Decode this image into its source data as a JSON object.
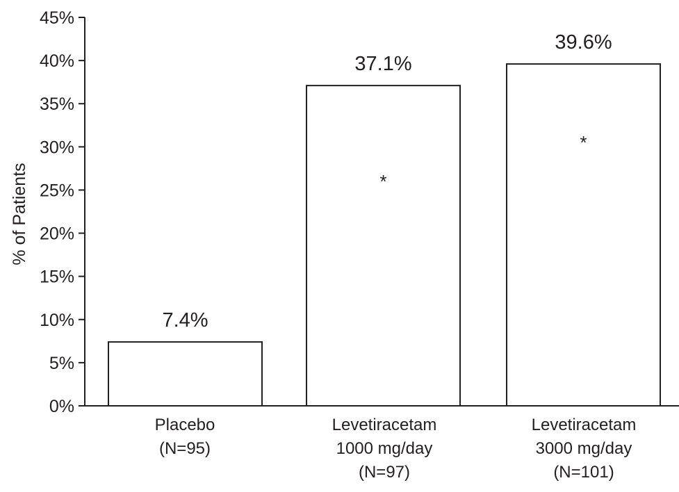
{
  "chart_data": {
    "type": "bar",
    "title": "",
    "xlabel": "",
    "ylabel": "% of Patients",
    "ylim": [
      0,
      45
    ],
    "yticks": [
      0,
      5,
      10,
      15,
      20,
      25,
      30,
      35,
      40,
      45
    ],
    "ytick_suffix": "%",
    "grid": false,
    "legend": "none",
    "bar_fill": "#ffffff",
    "bar_stroke": "#231f20",
    "categories": [
      [
        "Placebo",
        "(N=95)"
      ],
      [
        "Levetiracetam",
        "1000 mg/day",
        "(N=97)"
      ],
      [
        "Levetiracetam",
        "3000 mg/day",
        "(N=101)"
      ]
    ],
    "values": [
      7.4,
      37.1,
      39.6
    ],
    "data_labels": [
      "7.4%",
      "37.1%",
      "39.6%"
    ],
    "significance": [
      {
        "index": 1,
        "mark": "*",
        "at": 26
      },
      {
        "index": 2,
        "mark": "*",
        "at": 30.5
      }
    ]
  }
}
